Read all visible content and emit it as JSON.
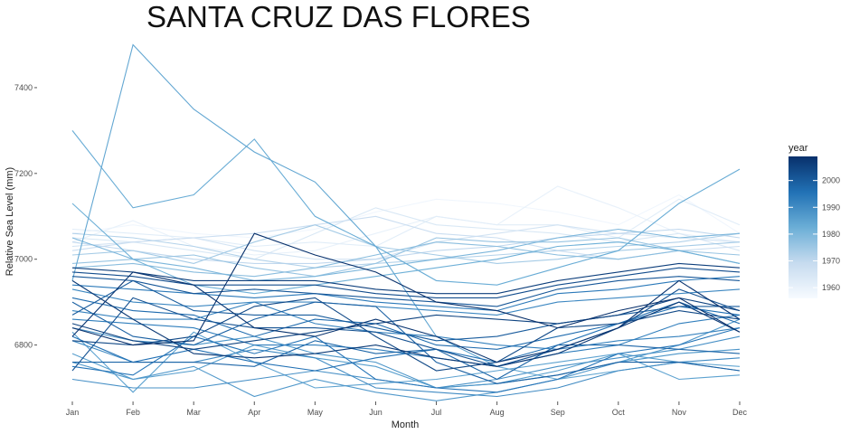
{
  "chart_data": {
    "type": "line",
    "title": "SANTA CRUZ DAS FLORES",
    "xlabel": "Month",
    "ylabel": "Relative Sea Level (mm)",
    "categories": [
      "Jan",
      "Feb",
      "Mar",
      "Apr",
      "May",
      "Jun",
      "Jul",
      "Aug",
      "Sep",
      "Oct",
      "Nov",
      "Dec"
    ],
    "ylim": [
      6660,
      7520
    ],
    "yticks": [
      6800,
      7000,
      7200,
      7400
    ],
    "grid": false,
    "colorbar": {
      "title": "year",
      "range": [
        1956,
        2009
      ],
      "ticks": [
        1960,
        1970,
        1980,
        1990,
        2000
      ],
      "low_color": "#f7fbff",
      "high_color": "#08306b"
    },
    "series": [
      {
        "year": 1958,
        "values": [
          7060,
          7080,
          7060,
          7050,
          7070,
          7110,
          7140,
          7130,
          7110,
          7080,
          7150,
          7060
        ]
      },
      {
        "year": 1960,
        "values": [
          7040,
          7090,
          7030,
          7010,
          7020,
          7060,
          7100,
          7080,
          7170,
          7120,
          7060,
          7040
        ]
      },
      {
        "year": 1962,
        "values": [
          7070,
          7060,
          7050,
          7030,
          7040,
          7030,
          7100,
          7080,
          7080,
          7050,
          7140,
          7080
        ]
      },
      {
        "year": 1964,
        "values": [
          7050,
          7040,
          7020,
          7000,
          7060,
          7120,
          7080,
          7070,
          7060,
          7040,
          7060,
          7020
        ]
      },
      {
        "year": 1966,
        "values": [
          7030,
          7040,
          7050,
          7020,
          7000,
          7000,
          7040,
          7060,
          7080,
          7060,
          7050,
          7040
        ]
      },
      {
        "year": 1968,
        "values": [
          7020,
          7040,
          7050,
          7060,
          7080,
          7100,
          7060,
          7050,
          7020,
          7000,
          7020,
          7030
        ]
      },
      {
        "year": 1970,
        "values": [
          7040,
          7020,
          7000,
          6990,
          6990,
          7000,
          7020,
          7030,
          7050,
          7060,
          7070,
          7050
        ]
      },
      {
        "year": 1972,
        "values": [
          7060,
          7050,
          7030,
          7000,
          6980,
          6990,
          7000,
          7010,
          7020,
          7030,
          7040,
          7060
        ]
      },
      {
        "year": 1974,
        "values": [
          7010,
          7020,
          6990,
          7040,
          7080,
          7030,
          7010,
          6990,
          7000,
          7020,
          7030,
          7040
        ]
      },
      {
        "year": 1976,
        "values": [
          6990,
          7000,
          7010,
          6980,
          6960,
          6990,
          7050,
          7040,
          7040,
          7050,
          7020,
          7010
        ]
      },
      {
        "year": 1978,
        "values": [
          6980,
          6990,
          6970,
          6960,
          6980,
          7010,
          7040,
          7030,
          7010,
          7000,
          7020,
          6990
        ]
      },
      {
        "year": 1980,
        "values": [
          7050,
          7000,
          6980,
          6950,
          6960,
          6980,
          7000,
          7020,
          7050,
          7070,
          7050,
          7060
        ]
      },
      {
        "year": 1982,
        "values": [
          7130,
          7000,
          6940,
          6920,
          6940,
          6960,
          6980,
          7000,
          7030,
          7040,
          7020,
          6990
        ]
      },
      {
        "year": 1983,
        "values": [
          7300,
          7120,
          7150,
          7280,
          7100,
          7030,
          6950,
          6940,
          6980,
          7020,
          7130,
          7210
        ]
      },
      {
        "year": 1984,
        "values": [
          6950,
          7500,
          7350,
          7250,
          7180,
          7030,
          6820,
          6750,
          6720,
          6740,
          6760,
          6750
        ]
      },
      {
        "year": 1985,
        "values": [
          6830,
          6690,
          6830,
          6760,
          6700,
          6710,
          6720,
          6740,
          6760,
          6780,
          6720,
          6730
        ]
      },
      {
        "year": 1986,
        "values": [
          6780,
          6720,
          6740,
          6800,
          6770,
          6750,
          6700,
          6710,
          6740,
          6780,
          6760,
          6740
        ]
      },
      {
        "year": 1987,
        "values": [
          6760,
          6720,
          6750,
          6680,
          6720,
          6690,
          6670,
          6690,
          6720,
          6760,
          6800,
          6860
        ]
      },
      {
        "year": 1988,
        "values": [
          6840,
          6810,
          6800,
          6820,
          6780,
          6760,
          6700,
          6710,
          6730,
          6760,
          6780,
          6790
        ]
      },
      {
        "year": 1989,
        "values": [
          6720,
          6700,
          6700,
          6720,
          6740,
          6720,
          6700,
          6720,
          6750,
          6770,
          6790,
          6820
        ]
      },
      {
        "year": 1990,
        "values": [
          6810,
          6760,
          6760,
          6790,
          6770,
          6700,
          6690,
          6680,
          6700,
          6740,
          6760,
          6770
        ]
      },
      {
        "year": 1991,
        "values": [
          6930,
          6900,
          6890,
          6900,
          6900,
          6890,
          6880,
          6870,
          6900,
          6910,
          6920,
          6930
        ]
      },
      {
        "year": 1992,
        "values": [
          6880,
          6860,
          6860,
          6900,
          6850,
          6830,
          6820,
          6800,
          6790,
          6810,
          6820,
          6840
        ]
      },
      {
        "year": 1993,
        "values": [
          6860,
          6850,
          6840,
          6800,
          6800,
          6790,
          6770,
          6750,
          6780,
          6800,
          6850,
          6870
        ]
      },
      {
        "year": 1994,
        "values": [
          6940,
          6930,
          6920,
          6910,
          6920,
          6900,
          6890,
          6880,
          6920,
          6930,
          6950,
          6960
        ]
      },
      {
        "year": 1995,
        "values": [
          6750,
          6730,
          6820,
          6780,
          6820,
          6720,
          6700,
          6690,
          6720,
          6780,
          6800,
          6840
        ]
      },
      {
        "year": 1996,
        "values": [
          6820,
          6760,
          6790,
          6760,
          6740,
          6770,
          6790,
          6760,
          6800,
          6850,
          6890,
          6870
        ]
      },
      {
        "year": 1997,
        "values": [
          6910,
          6880,
          6870,
          6820,
          6860,
          6850,
          6800,
          6790,
          6820,
          6850,
          6900,
          6850
        ]
      },
      {
        "year": 1998,
        "values": [
          6760,
          6760,
          6760,
          6750,
          6810,
          6780,
          6790,
          6720,
          6800,
          6800,
          6790,
          6780
        ]
      },
      {
        "year": 1999,
        "values": [
          6900,
          6820,
          6800,
          6860,
          6900,
          6890,
          6760,
          6710,
          6730,
          6760,
          6760,
          6740
        ]
      },
      {
        "year": 2000,
        "values": [
          6870,
          6950,
          6880,
          6870,
          6870,
          6840,
          6810,
          6820,
          6850,
          6870,
          6890,
          6890
        ]
      },
      {
        "year": 2001,
        "values": [
          6960,
          6950,
          6920,
          6930,
          6920,
          6910,
          6900,
          6890,
          6930,
          6950,
          6960,
          6950
        ]
      },
      {
        "year": 2002,
        "values": [
          6740,
          6910,
          6860,
          6840,
          6840,
          6830,
          6790,
          6750,
          6790,
          6840,
          6930,
          6880
        ]
      },
      {
        "year": 2003,
        "values": [
          6970,
          6960,
          6940,
          6940,
          6940,
          6920,
          6910,
          6910,
          6940,
          6960,
          6980,
          6970
        ]
      },
      {
        "year": 2004,
        "values": [
          6810,
          6800,
          6820,
          6890,
          6910,
          6820,
          6740,
          6760,
          6840,
          6850,
          6880,
          6860
        ]
      },
      {
        "year": 2005,
        "values": [
          6850,
          6810,
          6790,
          6810,
          6830,
          6850,
          6870,
          6860,
          6850,
          6870,
          6910,
          6880
        ]
      },
      {
        "year": 2006,
        "values": [
          6980,
          6970,
          6950,
          6950,
          6950,
          6930,
          6920,
          6920,
          6950,
          6970,
          6990,
          6980
        ]
      },
      {
        "year": 2007,
        "values": [
          6950,
          6860,
          6780,
          6770,
          6780,
          6800,
          6770,
          6750,
          6780,
          6840,
          6900,
          6830
        ]
      },
      {
        "year": 2008,
        "values": [
          6820,
          6970,
          6940,
          6840,
          6820,
          6860,
          6820,
          6760,
          6790,
          6840,
          6950,
          6860
        ]
      },
      {
        "year": 2009,
        "values": [
          6840,
          6800,
          6810,
          7060,
          7010,
          6970,
          6900,
          6880,
          6840,
          6880,
          6910,
          6830
        ]
      }
    ]
  }
}
